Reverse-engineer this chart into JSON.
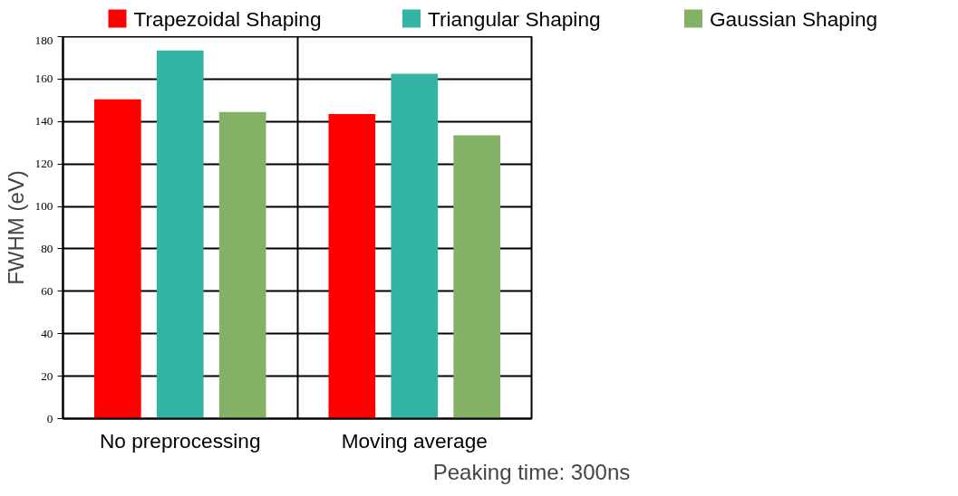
{
  "chart_data": {
    "type": "bar",
    "categories": [
      "No preprocessing",
      "Moving average"
    ],
    "xlabel": "Peaking time: 300ns",
    "ylabel": "FWHM (eV)",
    "ylim": [
      0,
      180
    ],
    "yticks": [
      0,
      20,
      40,
      60,
      80,
      100,
      120,
      140,
      160,
      180
    ],
    "grid": true,
    "legend": "top",
    "series": [
      {
        "name": "Trapezoidal Shaping",
        "color": "#ff0000",
        "values": [
          150.5,
          143.5
        ]
      },
      {
        "name": "Triangular Shaping",
        "color": "#32b5a5",
        "values": [
          173.5,
          162.5
        ]
      },
      {
        "name": "Gaussian Shaping",
        "color": "#83b267",
        "values": [
          144.5,
          133.5
        ]
      }
    ]
  }
}
